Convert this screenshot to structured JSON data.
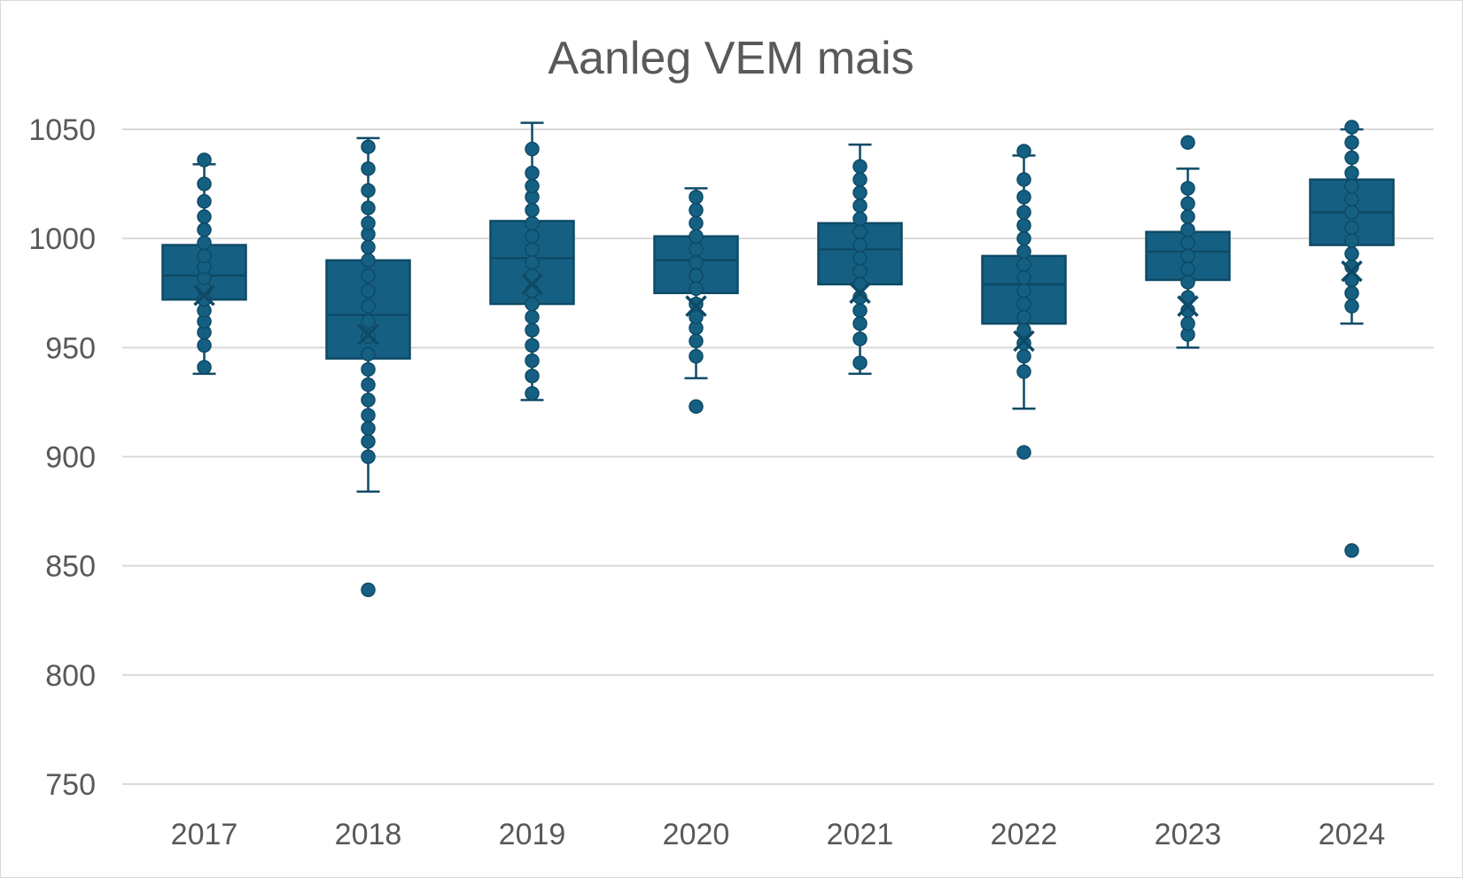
{
  "chart_data": {
    "type": "box",
    "title": "Aanleg VEM mais",
    "xlabel": "",
    "ylabel": "",
    "ylim": [
      750,
      1050
    ],
    "yticks": [
      750,
      800,
      850,
      900,
      950,
      1000,
      1050
    ],
    "grid": true,
    "legend": "none",
    "colors": {
      "box_fill": "#156082",
      "box_line": "#0e4a66",
      "median_line": "#0e4a66",
      "point": "#156082",
      "gridline": "#d9d9d9",
      "text": "#595959"
    },
    "categories": [
      "2017",
      "2018",
      "2019",
      "2020",
      "2021",
      "2022",
      "2023",
      "2024"
    ],
    "boxes": [
      {
        "category": "2017",
        "whisker_low": 938,
        "q1": 972,
        "median": 983,
        "q3": 997,
        "whisker_high": 1034,
        "mean": 974,
        "points": [
          941,
          951,
          957,
          962,
          967,
          972,
          977,
          982,
          987,
          992,
          998,
          1004,
          1010,
          1017,
          1025,
          1036
        ],
        "outliers": []
      },
      {
        "category": "2018",
        "whisker_low": 884,
        "q1": 945,
        "median": 965,
        "q3": 990,
        "whisker_high": 1046,
        "mean": 956,
        "points": [
          900,
          907,
          913,
          919,
          926,
          933,
          940,
          947,
          955,
          962,
          969,
          976,
          983,
          990,
          996,
          1002,
          1007,
          1014,
          1022,
          1032,
          1042
        ],
        "outliers": [
          839
        ]
      },
      {
        "category": "2019",
        "whisker_low": 926,
        "q1": 970,
        "median": 991,
        "q3": 1008,
        "whisker_high": 1053,
        "mean": 979,
        "points": [
          929,
          937,
          944,
          951,
          958,
          964,
          970,
          976,
          983,
          989,
          995,
          1001,
          1007,
          1013,
          1019,
          1024,
          1030,
          1041
        ],
        "outliers": []
      },
      {
        "category": "2020",
        "whisker_low": 936,
        "q1": 975,
        "median": 990,
        "q3": 1001,
        "whisker_high": 1023,
        "mean": 969,
        "points": [
          946,
          953,
          959,
          964,
          970,
          977,
          983,
          989,
          995,
          1001,
          1007,
          1013,
          1019
        ],
        "outliers": [
          923
        ]
      },
      {
        "category": "2021",
        "whisker_low": 938,
        "q1": 979,
        "median": 995,
        "q3": 1007,
        "whisker_high": 1043,
        "mean": 975,
        "points": [
          943,
          954,
          961,
          967,
          973,
          979,
          985,
          991,
          997,
          1003,
          1009,
          1015,
          1021,
          1027,
          1033
        ],
        "outliers": []
      },
      {
        "category": "2022",
        "whisker_low": 922,
        "q1": 961,
        "median": 979,
        "q3": 992,
        "whisker_high": 1038,
        "mean": 953,
        "points": [
          939,
          946,
          952,
          958,
          964,
          970,
          976,
          982,
          988,
          994,
          1000,
          1006,
          1012,
          1019,
          1027,
          1040
        ],
        "outliers": [
          902
        ]
      },
      {
        "category": "2023",
        "whisker_low": 950,
        "q1": 981,
        "median": 994,
        "q3": 1003,
        "whisker_high": 1032,
        "mean": 969,
        "points": [
          956,
          961,
          967,
          973,
          980,
          986,
          992,
          998,
          1004,
          1010,
          1016,
          1023
        ],
        "outliers": [
          1044
        ]
      },
      {
        "category": "2024",
        "whisker_low": 961,
        "q1": 997,
        "median": 1012,
        "q3": 1027,
        "whisker_high": 1050,
        "mean": 985,
        "points": [
          969,
          975,
          981,
          987,
          993,
          999,
          1005,
          1012,
          1018,
          1024,
          1030,
          1037,
          1044,
          1051
        ],
        "outliers": [
          857
        ]
      }
    ]
  }
}
